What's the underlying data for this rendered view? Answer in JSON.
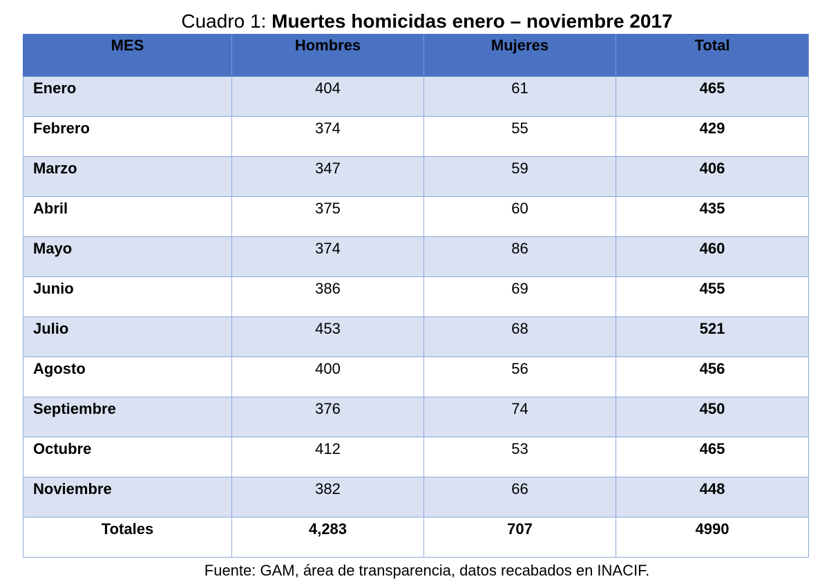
{
  "caption": {
    "prefix": "Cuadro 1:",
    "title": "Muertes homicidas enero – noviembre 2017"
  },
  "table": {
    "headers": [
      "MES",
      "Hombres",
      "Mujeres",
      "Total"
    ],
    "rows": [
      {
        "mes": "Enero",
        "hombres": "404",
        "mujeres": "61",
        "total": "465"
      },
      {
        "mes": "Febrero",
        "hombres": "374",
        "mujeres": "55",
        "total": "429"
      },
      {
        "mes": "Marzo",
        "hombres": "347",
        "mujeres": "59",
        "total": "406"
      },
      {
        "mes": "Abril",
        "hombres": "375",
        "mujeres": "60",
        "total": "435"
      },
      {
        "mes": "Mayo",
        "hombres": "374",
        "mujeres": "86",
        "total": "460"
      },
      {
        "mes": "Junio",
        "hombres": "386",
        "mujeres": "69",
        "total": "455"
      },
      {
        "mes": "Julio",
        "hombres": "453",
        "mujeres": "68",
        "total": "521"
      },
      {
        "mes": "Agosto",
        "hombres": "400",
        "mujeres": "56",
        "total": "456"
      },
      {
        "mes": "Septiembre",
        "hombres": "376",
        "mujeres": "74",
        "total": "450"
      },
      {
        "mes": "Octubre",
        "hombres": "412",
        "mujeres": "53",
        "total": "465"
      },
      {
        "mes": "Noviembre",
        "hombres": "382",
        "mujeres": "66",
        "total": "448"
      }
    ],
    "totals": {
      "mes": "Totales",
      "hombres": "4,283",
      "mujeres": "707",
      "total": "4990"
    }
  },
  "source": "Fuente: GAM, área de transparencia, datos recabados en INACIF.",
  "colors": {
    "header_bg": "#4a72c2",
    "band_bg": "#d9e1f2",
    "border": "#8ea9db"
  }
}
